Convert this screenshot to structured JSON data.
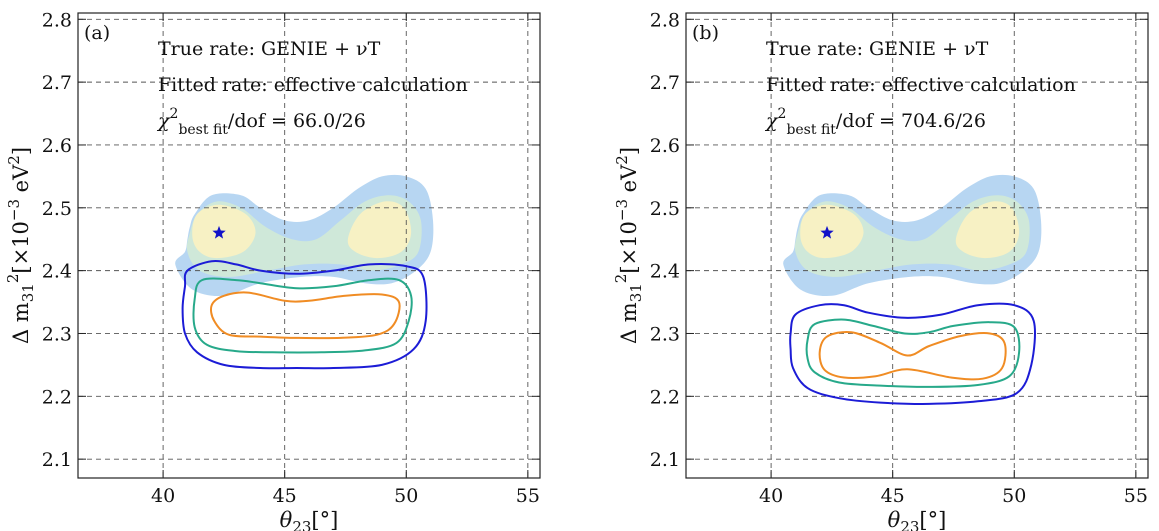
{
  "chart_data": [
    {
      "type": "contour",
      "panel_label": "(a)",
      "xlabel_main": "θ",
      "xlabel_sub": "23",
      "xlabel_tail": "[°]",
      "ylabel_text": "Δ m",
      "ylabel_sub": "31",
      "ylabel_sup": "2",
      "ylabel_unit": "[×10",
      "ylabel_exp": "−3",
      "ylabel_unit2": " eV",
      "ylabel_exp2": "2",
      "ylabel_close": "]",
      "xlim": [
        36.5,
        55.5
      ],
      "ylim": [
        2.07,
        2.81
      ],
      "xticks": [
        "40",
        "45",
        "50",
        "55"
      ],
      "yticks": [
        "2.1",
        "2.2",
        "2.3",
        "2.4",
        "2.5",
        "2.6",
        "2.7",
        "2.8"
      ],
      "grid": true,
      "annotations": {
        "line1": "True rate: GENIE + νT",
        "line2": "Fitted rate: effective calculation",
        "chi_symbol": "χ",
        "chi_sup": "2",
        "chi_sub": "best fit",
        "chi_tail": "/dof = 66.0/26"
      },
      "best_fit": {
        "x": 42.3,
        "y": 2.46
      },
      "true_regions": [
        {
          "level": "outer",
          "color": "#b7d6f2",
          "points": [
            [
              40.5,
              2.41
            ],
            [
              40.9,
              2.43
            ],
            [
              41.0,
              2.45
            ],
            [
              41.1,
              2.47
            ],
            [
              41.3,
              2.49
            ],
            [
              42.0,
              2.52
            ],
            [
              43.2,
              2.52
            ],
            [
              44.0,
              2.5
            ],
            [
              45.0,
              2.48
            ],
            [
              46.0,
              2.48
            ],
            [
              47.0,
              2.5
            ],
            [
              48.0,
              2.53
            ],
            [
              49.0,
              2.55
            ],
            [
              50.0,
              2.55
            ],
            [
              50.8,
              2.53
            ],
            [
              51.1,
              2.48
            ],
            [
              51.0,
              2.43
            ],
            [
              50.4,
              2.4
            ],
            [
              49.4,
              2.38
            ],
            [
              48.3,
              2.38
            ],
            [
              47.0,
              2.39
            ],
            [
              45.7,
              2.39
            ],
            [
              44.0,
              2.38
            ],
            [
              42.5,
              2.36
            ],
            [
              41.2,
              2.37
            ]
          ]
        },
        {
          "level": "middle",
          "color": "#cfe8d9",
          "points": [
            [
              41.0,
              2.43
            ],
            [
              41.1,
              2.46
            ],
            [
              41.4,
              2.49
            ],
            [
              42.2,
              2.51
            ],
            [
              43.2,
              2.5
            ],
            [
              44.2,
              2.47
            ],
            [
              45.3,
              2.45
            ],
            [
              46.3,
              2.45
            ],
            [
              47.3,
              2.48
            ],
            [
              48.3,
              2.51
            ],
            [
              49.3,
              2.52
            ],
            [
              50.1,
              2.51
            ],
            [
              50.6,
              2.48
            ],
            [
              50.5,
              2.43
            ],
            [
              49.8,
              2.41
            ],
            [
              48.6,
              2.4
            ],
            [
              47.3,
              2.41
            ],
            [
              45.8,
              2.41
            ],
            [
              44.3,
              2.4
            ],
            [
              42.7,
              2.39
            ],
            [
              41.5,
              2.4
            ]
          ]
        },
        {
          "level": "inner-left",
          "color": "#f7f1c4",
          "points": [
            [
              41.2,
              2.455
            ],
            [
              41.4,
              2.49
            ],
            [
              42.3,
              2.505
            ],
            [
              43.4,
              2.49
            ],
            [
              43.8,
              2.46
            ],
            [
              43.3,
              2.43
            ],
            [
              42.2,
              2.42
            ],
            [
              41.5,
              2.43
            ]
          ]
        },
        {
          "level": "inner-right",
          "color": "#f7f1c4",
          "points": [
            [
              47.6,
              2.45
            ],
            [
              48.1,
              2.49
            ],
            [
              49.1,
              2.51
            ],
            [
              49.9,
              2.5
            ],
            [
              50.2,
              2.46
            ],
            [
              49.8,
              2.43
            ],
            [
              48.8,
              2.42
            ],
            [
              47.9,
              2.43
            ]
          ]
        }
      ],
      "fit_contours": [
        {
          "level": "3σ",
          "color": "#1c1cd6",
          "points": [
            [
              40.9,
              2.375
            ],
            [
              41.0,
              2.4
            ],
            [
              42.0,
              2.415
            ],
            [
              43.0,
              2.41
            ],
            [
              44.0,
              2.4
            ],
            [
              45.5,
              2.395
            ],
            [
              47.0,
              2.4
            ],
            [
              48.5,
              2.41
            ],
            [
              50.0,
              2.407
            ],
            [
              50.7,
              2.39
            ],
            [
              50.8,
              2.32
            ],
            [
              50.3,
              2.275
            ],
            [
              49.0,
              2.25
            ],
            [
              47.0,
              2.245
            ],
            [
              45.5,
              2.245
            ],
            [
              44.0,
              2.245
            ],
            [
              42.5,
              2.25
            ],
            [
              41.4,
              2.27
            ],
            [
              40.9,
              2.3
            ],
            [
              40.8,
              2.34
            ]
          ]
        },
        {
          "level": "2σ",
          "color": "#27a98a",
          "points": [
            [
              41.3,
              2.355
            ],
            [
              41.6,
              2.385
            ],
            [
              43.0,
              2.385
            ],
            [
              44.0,
              2.38
            ],
            [
              45.5,
              2.372
            ],
            [
              47.0,
              2.375
            ],
            [
              48.5,
              2.385
            ],
            [
              49.7,
              2.385
            ],
            [
              50.2,
              2.36
            ],
            [
              50.1,
              2.32
            ],
            [
              49.6,
              2.285
            ],
            [
              48.3,
              2.273
            ],
            [
              46.5,
              2.27
            ],
            [
              44.5,
              2.27
            ],
            [
              43.0,
              2.272
            ],
            [
              41.8,
              2.282
            ],
            [
              41.3,
              2.31
            ]
          ]
        },
        {
          "level": "1σ",
          "color": "#f08c24",
          "points": [
            [
              42.0,
              2.345
            ],
            [
              42.5,
              2.36
            ],
            [
              43.5,
              2.365
            ],
            [
              45.0,
              2.352
            ],
            [
              46.0,
              2.352
            ],
            [
              47.5,
              2.36
            ],
            [
              49.0,
              2.362
            ],
            [
              49.7,
              2.35
            ],
            [
              49.5,
              2.315
            ],
            [
              48.8,
              2.298
            ],
            [
              47.3,
              2.293
            ],
            [
              45.5,
              2.293
            ],
            [
              44.0,
              2.295
            ],
            [
              42.7,
              2.298
            ],
            [
              42.1,
              2.32
            ]
          ]
        }
      ]
    },
    {
      "type": "contour",
      "panel_label": "(b)",
      "xlabel_main": "θ",
      "xlabel_sub": "23",
      "xlabel_tail": "[°]",
      "ylabel_text": "Δ m",
      "ylabel_sub": "31",
      "ylabel_sup": "2",
      "ylabel_unit": "[×10",
      "ylabel_exp": "−3",
      "ylabel_unit2": " eV",
      "ylabel_exp2": "2",
      "ylabel_close": "]",
      "xlim": [
        36.5,
        55.5
      ],
      "ylim": [
        2.07,
        2.81
      ],
      "xticks": [
        "40",
        "45",
        "50",
        "55"
      ],
      "yticks": [
        "2.1",
        "2.2",
        "2.3",
        "2.4",
        "2.5",
        "2.6",
        "2.7",
        "2.8"
      ],
      "grid": true,
      "annotations": {
        "line1": "True rate: GENIE + νT",
        "line2": "Fitted rate: effective calculation",
        "chi_symbol": "χ",
        "chi_sup": "2",
        "chi_sub": "best fit",
        "chi_tail": "/dof = 704.6/26"
      },
      "best_fit": {
        "x": 42.3,
        "y": 2.46
      },
      "true_regions": [
        {
          "level": "outer",
          "color": "#b7d6f2",
          "points": [
            [
              40.5,
              2.41
            ],
            [
              40.9,
              2.43
            ],
            [
              41.0,
              2.45
            ],
            [
              41.1,
              2.47
            ],
            [
              41.3,
              2.49
            ],
            [
              42.0,
              2.52
            ],
            [
              43.2,
              2.52
            ],
            [
              44.0,
              2.5
            ],
            [
              45.0,
              2.48
            ],
            [
              46.0,
              2.48
            ],
            [
              47.0,
              2.5
            ],
            [
              48.0,
              2.53
            ],
            [
              49.0,
              2.55
            ],
            [
              50.0,
              2.55
            ],
            [
              50.8,
              2.53
            ],
            [
              51.1,
              2.48
            ],
            [
              51.0,
              2.43
            ],
            [
              50.4,
              2.4
            ],
            [
              49.4,
              2.38
            ],
            [
              48.3,
              2.38
            ],
            [
              47.0,
              2.39
            ],
            [
              45.7,
              2.39
            ],
            [
              44.0,
              2.38
            ],
            [
              42.5,
              2.36
            ],
            [
              41.2,
              2.37
            ]
          ]
        },
        {
          "level": "middle",
          "color": "#cfe8d9",
          "points": [
            [
              41.0,
              2.43
            ],
            [
              41.1,
              2.46
            ],
            [
              41.4,
              2.49
            ],
            [
              42.2,
              2.51
            ],
            [
              43.2,
              2.5
            ],
            [
              44.2,
              2.47
            ],
            [
              45.3,
              2.45
            ],
            [
              46.3,
              2.45
            ],
            [
              47.3,
              2.48
            ],
            [
              48.3,
              2.51
            ],
            [
              49.3,
              2.52
            ],
            [
              50.1,
              2.51
            ],
            [
              50.6,
              2.48
            ],
            [
              50.5,
              2.43
            ],
            [
              49.8,
              2.41
            ],
            [
              48.6,
              2.4
            ],
            [
              47.3,
              2.41
            ],
            [
              45.8,
              2.41
            ],
            [
              44.3,
              2.4
            ],
            [
              42.7,
              2.39
            ],
            [
              41.5,
              2.4
            ]
          ]
        },
        {
          "level": "inner-left",
          "color": "#f7f1c4",
          "points": [
            [
              41.2,
              2.455
            ],
            [
              41.4,
              2.49
            ],
            [
              42.3,
              2.505
            ],
            [
              43.4,
              2.49
            ],
            [
              43.8,
              2.46
            ],
            [
              43.3,
              2.43
            ],
            [
              42.2,
              2.42
            ],
            [
              41.5,
              2.43
            ]
          ]
        },
        {
          "level": "inner-right",
          "color": "#f7f1c4",
          "points": [
            [
              47.6,
              2.45
            ],
            [
              48.1,
              2.49
            ],
            [
              49.1,
              2.51
            ],
            [
              49.9,
              2.5
            ],
            [
              50.2,
              2.46
            ],
            [
              49.8,
              2.43
            ],
            [
              48.8,
              2.42
            ],
            [
              47.9,
              2.43
            ]
          ]
        }
      ],
      "fit_contours": [
        {
          "level": "3σ",
          "color": "#1c1cd6",
          "points": [
            [
              40.8,
              2.3
            ],
            [
              41.0,
              2.33
            ],
            [
              42.0,
              2.345
            ],
            [
              43.0,
              2.345
            ],
            [
              44.0,
              2.333
            ],
            [
              45.5,
              2.325
            ],
            [
              47.0,
              2.33
            ],
            [
              48.5,
              2.345
            ],
            [
              50.0,
              2.345
            ],
            [
              50.8,
              2.32
            ],
            [
              50.7,
              2.25
            ],
            [
              50.1,
              2.205
            ],
            [
              48.5,
              2.192
            ],
            [
              46.5,
              2.188
            ],
            [
              44.5,
              2.19
            ],
            [
              42.8,
              2.197
            ],
            [
              41.5,
              2.213
            ],
            [
              40.9,
              2.245
            ],
            [
              40.8,
              2.275
            ]
          ]
        },
        {
          "level": "2σ",
          "color": "#27a98a",
          "points": [
            [
              41.5,
              2.29
            ],
            [
              41.8,
              2.315
            ],
            [
              43.0,
              2.322
            ],
            [
              44.2,
              2.312
            ],
            [
              45.5,
              2.3
            ],
            [
              46.5,
              2.302
            ],
            [
              47.5,
              2.312
            ],
            [
              49.0,
              2.318
            ],
            [
              50.0,
              2.31
            ],
            [
              50.2,
              2.27
            ],
            [
              49.8,
              2.232
            ],
            [
              48.5,
              2.218
            ],
            [
              46.5,
              2.215
            ],
            [
              44.5,
              2.217
            ],
            [
              42.8,
              2.222
            ],
            [
              41.8,
              2.238
            ],
            [
              41.5,
              2.26
            ]
          ]
        },
        {
          "level": "1σ",
          "color": "#f08c24",
          "points": [
            [
              42.0,
              2.27
            ],
            [
              42.3,
              2.295
            ],
            [
              43.3,
              2.302
            ],
            [
              44.5,
              2.285
            ],
            [
              45.6,
              2.265
            ],
            [
              46.5,
              2.28
            ],
            [
              47.8,
              2.296
            ],
            [
              49.0,
              2.3
            ],
            [
              49.6,
              2.285
            ],
            [
              49.5,
              2.245
            ],
            [
              48.7,
              2.228
            ],
            [
              47.4,
              2.23
            ],
            [
              45.6,
              2.243
            ],
            [
              44.3,
              2.232
            ],
            [
              43.0,
              2.23
            ],
            [
              42.2,
              2.242
            ]
          ]
        }
      ]
    }
  ]
}
